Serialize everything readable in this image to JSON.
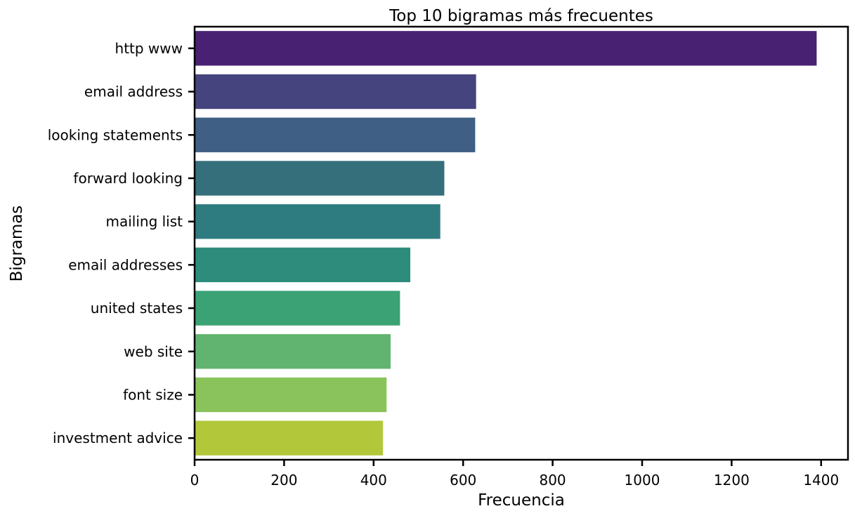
{
  "chart_data": {
    "type": "bar",
    "orientation": "horizontal",
    "title": "Top 10 bigramas más frecuentes",
    "xlabel": "Frecuencia",
    "ylabel": "Bigramas",
    "categories": [
      "http www",
      "email address",
      "looking statements",
      "forward looking",
      "mailing list",
      "email addresses",
      "united states",
      "web site",
      "font size",
      "investment advice"
    ],
    "values": [
      1390,
      629,
      627,
      558,
      549,
      482,
      459,
      438,
      429,
      421
    ],
    "colors": [
      "#482173",
      "#46447e",
      "#3f5f85",
      "#356f7c",
      "#2f7c80",
      "#2d8c7c",
      "#3ba276",
      "#60b46f",
      "#8ac35b",
      "#b2c83a"
    ],
    "xlim": [
      0,
      1460
    ],
    "xticks": [
      0,
      200,
      400,
      600,
      800,
      1000,
      1200,
      1400
    ],
    "grid": false,
    "legend": "none"
  }
}
